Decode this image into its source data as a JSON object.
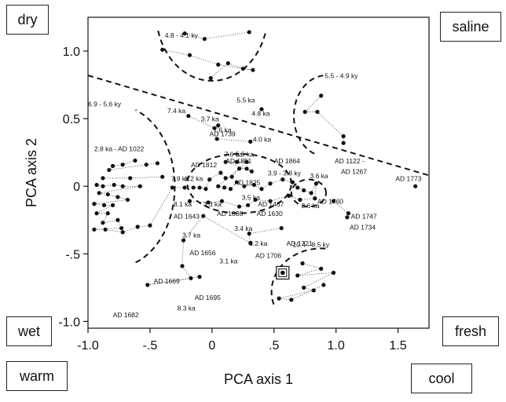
{
  "chart_data": {
    "type": "scatter",
    "xlabel": "PCA axis 1",
    "ylabel": "PCA axis 2",
    "xlim": [
      -1.0,
      1.75
    ],
    "ylim": [
      -1.05,
      1.25
    ],
    "x_ticks": [
      "-1.0",
      "-.5",
      "0",
      ".5",
      "1.0",
      "1.5"
    ],
    "x_tick_values": [
      -1.0,
      -0.5,
      0,
      0.5,
      1.0,
      1.5
    ],
    "y_ticks": [
      "1.0",
      "0.5",
      "0",
      "-.5",
      "-1.0"
    ],
    "y_tick_values": [
      1.0,
      0.5,
      0,
      -0.5,
      -1.0
    ],
    "corner_labels": {
      "top_left": "dry",
      "top_right": "saline",
      "mid_left": "wet",
      "mid_right": "fresh",
      "bottom_left": "warm",
      "bottom_right": "cool"
    },
    "points": [
      {
        "x": -0.22,
        "y": 1.13
      },
      {
        "x": -0.06,
        "y": 1.09
      },
      {
        "x": 0.3,
        "y": 1.14
      },
      {
        "x": -0.4,
        "y": 1.01
      },
      {
        "x": -0.18,
        "y": 0.97
      },
      {
        "x": 0.05,
        "y": 0.9
      },
      {
        "x": 0.33,
        "y": 0.86
      },
      {
        "x": 0.25,
        "y": 0.87
      },
      {
        "x": 0.13,
        "y": 0.91
      },
      {
        "x": -0.01,
        "y": 0.8
      },
      {
        "x": 0.88,
        "y": 0.67
      },
      {
        "x": 0.75,
        "y": 0.55
      },
      {
        "x": 0.85,
        "y": 0.55
      },
      {
        "x": 1.06,
        "y": 0.37
      },
      {
        "x": 1.06,
        "y": 0.32
      },
      {
        "x": 0.4,
        "y": 0.57
      },
      {
        "x": -0.19,
        "y": 0.52
      },
      {
        "x": 0.02,
        "y": 0.43
      },
      {
        "x": 0.05,
        "y": 0.45
      },
      {
        "x": 0.04,
        "y": 0.35
      },
      {
        "x": 0.31,
        "y": 0.33
      },
      {
        "x": -0.62,
        "y": 0.19
      },
      {
        "x": -0.72,
        "y": 0.16
      },
      {
        "x": -0.8,
        "y": 0.15
      },
      {
        "x": -0.83,
        "y": 0.12
      },
      {
        "x": -0.53,
        "y": 0.16
      },
      {
        "x": -0.44,
        "y": 0.17
      },
      {
        "x": -0.88,
        "y": 0.06
      },
      {
        "x": -0.66,
        "y": 0.06
      },
      {
        "x": -0.4,
        "y": 0.07
      },
      {
        "x": -0.93,
        "y": 0.01
      },
      {
        "x": -0.88,
        "y": 0.0
      },
      {
        "x": -0.79,
        "y": 0.01
      },
      {
        "x": -0.72,
        "y": 0.0
      },
      {
        "x": -0.58,
        "y": 0.0
      },
      {
        "x": -0.91,
        "y": -0.05
      },
      {
        "x": -0.84,
        "y": -0.06
      },
      {
        "x": -0.76,
        "y": -0.08
      },
      {
        "x": -0.68,
        "y": -0.1
      },
      {
        "x": -0.95,
        "y": -0.13
      },
      {
        "x": -0.87,
        "y": -0.14
      },
      {
        "x": -0.8,
        "y": -0.14
      },
      {
        "x": -0.93,
        "y": -0.2
      },
      {
        "x": -0.84,
        "y": -0.2
      },
      {
        "x": -0.88,
        "y": -0.27
      },
      {
        "x": -0.76,
        "y": -0.25
      },
      {
        "x": -0.73,
        "y": -0.31
      },
      {
        "x": -0.95,
        "y": -0.32
      },
      {
        "x": -0.86,
        "y": -0.32
      },
      {
        "x": -0.72,
        "y": -0.34
      },
      {
        "x": -0.6,
        "y": -0.3
      },
      {
        "x": -0.5,
        "y": -0.29
      },
      {
        "x": -0.32,
        "y": -0.01
      },
      {
        "x": -0.22,
        "y": -0.01
      },
      {
        "x": -0.15,
        "y": -0.01
      },
      {
        "x": -0.1,
        "y": -0.01
      },
      {
        "x": -0.05,
        "y": -0.02
      },
      {
        "x": -0.02,
        "y": 0.05
      },
      {
        "x": 0.07,
        "y": 0.1
      },
      {
        "x": 0.11,
        "y": 0.06
      },
      {
        "x": 0.16,
        "y": 0.07
      },
      {
        "x": 0.22,
        "y": 0.13
      },
      {
        "x": 0.28,
        "y": 0.13
      },
      {
        "x": 0.32,
        "y": 0.11
      },
      {
        "x": 0.11,
        "y": 0.18
      },
      {
        "x": 0.2,
        "y": 0.18
      },
      {
        "x": 0.28,
        "y": 0.18
      },
      {
        "x": 0.05,
        "y": 0.0
      },
      {
        "x": 0.1,
        "y": -0.01
      },
      {
        "x": 0.15,
        "y": -0.02
      },
      {
        "x": 0.2,
        "y": 0.03
      },
      {
        "x": 0.26,
        "y": 0.0
      },
      {
        "x": 0.34,
        "y": 0.01
      },
      {
        "x": 0.4,
        "y": -0.02
      },
      {
        "x": 0.47,
        "y": 0.02
      },
      {
        "x": 0.57,
        "y": 0.05
      },
      {
        "x": 0.65,
        "y": 0.03
      },
      {
        "x": 0.69,
        "y": -0.01
      },
      {
        "x": 0.74,
        "y": -0.03
      },
      {
        "x": 0.8,
        "y": -0.05
      },
      {
        "x": 0.84,
        "y": 0.02
      },
      {
        "x": 0.83,
        "y": -0.09
      },
      {
        "x": 0.71,
        "y": -0.1
      },
      {
        "x": 0.62,
        "y": -0.07
      },
      {
        "x": 0.47,
        "y": -0.11
      },
      {
        "x": 0.35,
        "y": -0.1
      },
      {
        "x": 0.29,
        "y": -0.14
      },
      {
        "x": 0.22,
        "y": -0.15
      },
      {
        "x": 0.08,
        "y": -0.11
      },
      {
        "x": -0.03,
        "y": -0.12
      },
      {
        "x": -0.18,
        "y": -0.11
      },
      {
        "x": 0.56,
        "y": -0.31
      },
      {
        "x": 0.3,
        "y": -0.35
      },
      {
        "x": 0.31,
        "y": -0.42
      },
      {
        "x": -0.07,
        "y": -0.22
      },
      {
        "x": -0.23,
        "y": -0.4
      },
      {
        "x": -0.24,
        "y": -0.59
      },
      {
        "x": -0.17,
        "y": -0.68
      },
      {
        "x": -0.52,
        "y": -0.73
      },
      {
        "x": -0.1,
        "y": -0.67
      },
      {
        "x": 0.98,
        "y": -0.11
      },
      {
        "x": 1.1,
        "y": -0.2
      },
      {
        "x": 1.09,
        "y": -0.23
      },
      {
        "x": 1.64,
        "y": 0.0
      },
      {
        "x": 0.73,
        "y": -0.57
      },
      {
        "x": 0.88,
        "y": -0.61
      },
      {
        "x": 0.69,
        "y": -0.66
      },
      {
        "x": 0.98,
        "y": -0.64
      },
      {
        "x": 0.74,
        "y": -0.75
      },
      {
        "x": 0.82,
        "y": -0.77
      },
      {
        "x": 0.54,
        "y": -0.83
      },
      {
        "x": 0.64,
        "y": -0.84
      },
      {
        "x": 0.9,
        "y": -0.73
      }
    ],
    "highlight_point": {
      "x": 0.57,
      "y": -0.64
    },
    "annotations": [
      {
        "text": "4.8 - 4.1 ky",
        "x": -0.38,
        "y": 1.1
      },
      {
        "text": "5.5 - 4.9 ky",
        "x": 0.91,
        "y": 0.8
      },
      {
        "text": "6.9 - 5.6 ky",
        "x": -1.0,
        "y": 0.59
      },
      {
        "text": "10.4 - 8.5 ky",
        "x": 0.65,
        "y": -0.45
      },
      {
        "text": "5.5 ka",
        "x": 0.2,
        "y": 0.62
      },
      {
        "text": "4.8 ka",
        "x": 0.32,
        "y": 0.52
      },
      {
        "text": "7.4 ka",
        "x": -0.36,
        "y": 0.54
      },
      {
        "text": "3.7 ka",
        "x": -0.09,
        "y": 0.48
      },
      {
        "text": "7.6 ka",
        "x": 0.01,
        "y": 0.4
      },
      {
        "text": "AD 1739",
        "x": -0.02,
        "y": 0.37
      },
      {
        "text": "4.0 ka",
        "x": 0.33,
        "y": 0.33
      },
      {
        "text": "2.8 ka - AD 1022",
        "x": -0.95,
        "y": 0.26
      },
      {
        "text": "AD 1812",
        "x": -0.17,
        "y": 0.14
      },
      {
        "text": "AD 1851",
        "x": 0.11,
        "y": 0.17
      },
      {
        "text": "7.6 ka",
        "x": 0.1,
        "y": 0.22
      },
      {
        "text": "5.5 ka",
        "x": 0.19,
        "y": 0.22
      },
      {
        "text": "AD 1864",
        "x": 0.5,
        "y": 0.17
      },
      {
        "text": "AD 1122 -",
        "x": 0.99,
        "y": 0.17
      },
      {
        "text": "AD 1267",
        "x": 1.04,
        "y": 0.09
      },
      {
        "text": "AD 1773",
        "x": 1.48,
        "y": 0.04
      },
      {
        "text": "7.9 ka",
        "x": -0.33,
        "y": 0.04
      },
      {
        "text": "8.2 ka",
        "x": -0.22,
        "y": 0.04
      },
      {
        "text": "3.9 - 3.8 ky",
        "x": 0.45,
        "y": 0.08
      },
      {
        "text": "3.6 ka",
        "x": 0.79,
        "y": 0.06
      },
      {
        "text": "AD 1825",
        "x": 0.18,
        "y": 0.01
      },
      {
        "text": "3.5 ka",
        "x": 0.24,
        "y": -0.1
      },
      {
        "text": "AD 1467",
        "x": 0.37,
        "y": -0.15
      },
      {
        "text": "AD 1630",
        "x": 0.36,
        "y": -0.22
      },
      {
        "text": "3.6 ka",
        "x": 0.72,
        "y": -0.16
      },
      {
        "text": "AD 1760",
        "x": 0.85,
        "y": -0.13
      },
      {
        "text": "AD 1747",
        "x": 1.12,
        "y": -0.24
      },
      {
        "text": "AD 1734",
        "x": 1.11,
        "y": -0.32
      },
      {
        "text": "8.1 ka",
        "x": -0.31,
        "y": -0.15
      },
      {
        "text": "3.3 ka",
        "x": -0.07,
        "y": -0.15
      },
      {
        "text": "AD 1643",
        "x": -0.31,
        "y": -0.24
      },
      {
        "text": "AD 1838",
        "x": 0.04,
        "y": -0.22
      },
      {
        "text": "3.4 ka",
        "x": 0.18,
        "y": -0.33
      },
      {
        "text": "3.7 ka",
        "x": -0.24,
        "y": -0.38
      },
      {
        "text": "3.2 ka",
        "x": 0.3,
        "y": -0.44
      },
      {
        "text": "AD 1721",
        "x": 0.6,
        "y": -0.44
      },
      {
        "text": "AD 1656",
        "x": -0.18,
        "y": -0.51
      },
      {
        "text": "AD 1706",
        "x": 0.35,
        "y": -0.53
      },
      {
        "text": "3.1 ka",
        "x": 0.06,
        "y": -0.57
      },
      {
        "text": "AD 1669",
        "x": -0.47,
        "y": -0.72
      },
      {
        "text": "AD 1695",
        "x": -0.14,
        "y": -0.84
      },
      {
        "text": "8.3 ka",
        "x": -0.28,
        "y": -0.92
      },
      {
        "text": "AD 1682",
        "x": -0.8,
        "y": -0.97
      }
    ]
  }
}
